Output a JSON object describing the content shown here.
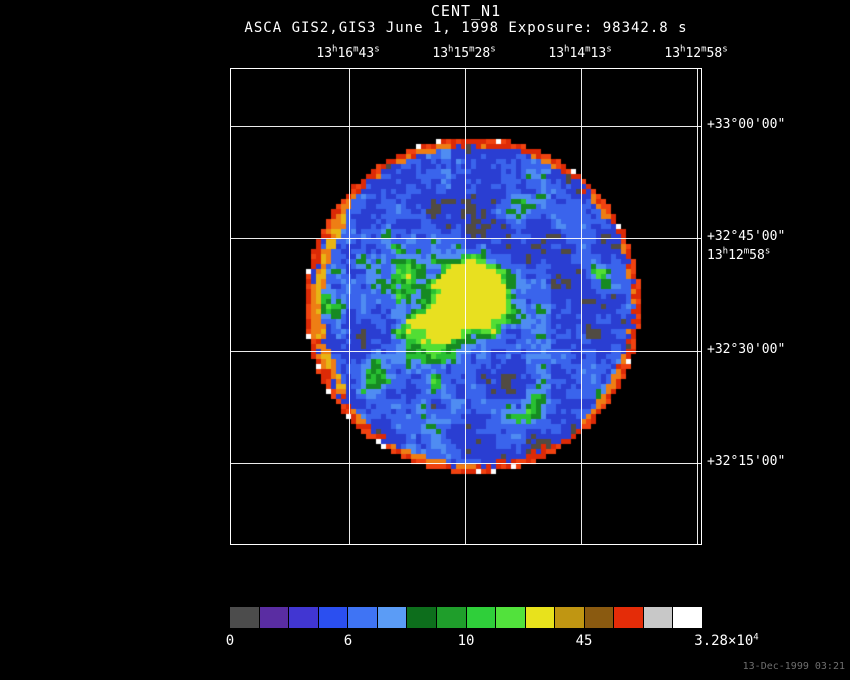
{
  "title": "CENT_N1",
  "subtitle": "ASCA GIS2,GIS3 June 1, 1998 Exposure: 98342.8 s",
  "timestamp": "13-Dec-1999 03:21",
  "axes": {
    "ra_ticks": [
      {
        "hours": "13",
        "minutes": "16",
        "seconds": "43"
      },
      {
        "hours": "13",
        "minutes": "15",
        "seconds": "28"
      },
      {
        "hours": "13",
        "minutes": "14",
        "seconds": "13"
      },
      {
        "hours": "13",
        "minutes": "12",
        "seconds": "58"
      }
    ],
    "dec_ticks": [
      "+33°00'00\"",
      "+32°45'00\"",
      "+32°30'00\"",
      "+32°15'00\""
    ],
    "extra_ra_tick": {
      "hours": "13",
      "minutes": "12",
      "seconds": "58"
    }
  },
  "colorbar": {
    "colors": [
      "#4c4c4c",
      "#5a2da2",
      "#4136d2",
      "#2b4ff0",
      "#3f74f4",
      "#5b9cf6",
      "#0d6e1c",
      "#1f9e2b",
      "#2fcf3a",
      "#52e23c",
      "#e8e21c",
      "#c09612",
      "#8a5a10",
      "#e42c08",
      "#c8c8c8",
      "#ffffff"
    ],
    "ticks": [
      {
        "text": "0"
      },
      {
        "text": "6"
      },
      {
        "text": "10"
      },
      {
        "text": "45"
      },
      {
        "text": "3.28×10",
        "sup": "4"
      }
    ]
  },
  "image_palette": {
    "background": "#000000",
    "low": "#514b42",
    "blue1": "#2a3ed2",
    "blue2": "#3a64ec",
    "blue3": "#4f8cf2",
    "green1": "#168a22",
    "green2": "#28c032",
    "green3": "#52de34",
    "yellow": "#e8e020",
    "rim_red": "#dc2a06",
    "rim_red2": "#f04210",
    "rim_orange": "#ee7e14",
    "rim_gold": "#e8b414",
    "rim_white": "#ffffff"
  },
  "chart_data": {
    "type": "heatmap",
    "title": "CENT_N1",
    "subtitle": "ASCA GIS2,GIS3 June 1, 1998 Exposure: 98342.8 s",
    "x_ticks": [
      "13h16m43s",
      "13h15m28s",
      "13h14m13s",
      "13h12m58s"
    ],
    "y_ticks": [
      "+33°00'00\"",
      "+32°45'00\"",
      "+32°30'00\"",
      "+32°15'00\""
    ],
    "colorbar_tick_values": [
      0,
      6,
      10,
      45,
      32800
    ],
    "colorbar_max_label": "3.28×10⁴",
    "shape": "disk",
    "notes": "Circular detector field of view filled with mottled blue/green counts, bright yellow-green peak cluster just left of field center, scattered green patches, dark gray low-count patches, and a red/orange saturated ring at the disk edge (thicker orange-gold on the left limb). White coordinate grid overlays the image."
  }
}
